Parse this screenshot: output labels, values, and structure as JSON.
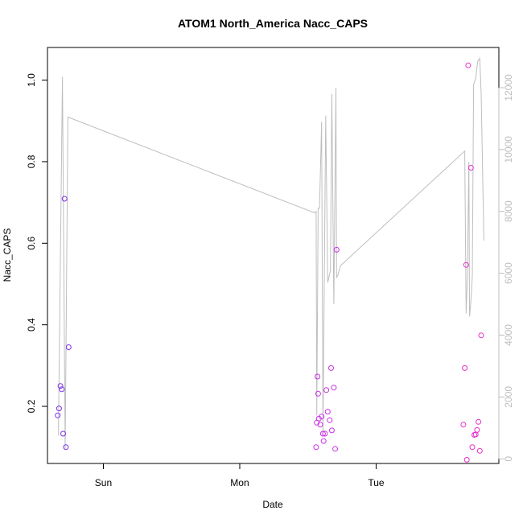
{
  "chart_data": {
    "type": "scatter",
    "title": "ATOM1 North_America Nacc_CAPS",
    "xlabel": "Date",
    "ylabel": "Nacc_CAPS",
    "x_range": [
      -0.41,
      2.9
    ],
    "y_range": [
      0.06,
      1.08
    ],
    "y2_range": [
      -150,
      13300
    ],
    "x_ticks": [
      {
        "value": 0,
        "label": "Sun"
      },
      {
        "value": 1,
        "label": "Mon"
      },
      {
        "value": 2,
        "label": "Tue"
      }
    ],
    "y_ticks": [
      0.2,
      0.4,
      0.6,
      0.8,
      1.0
    ],
    "y2_ticks": [
      0,
      2000,
      4000,
      6000,
      8000,
      10000,
      12000
    ],
    "grid": false,
    "colors": {
      "line": "#bebebe",
      "axis": "#000000",
      "right_axis": "#bebebe",
      "title": "#000000"
    },
    "points": [
      {
        "x": -0.335,
        "y": 0.178,
        "color": "#7b2ee6"
      },
      {
        "x": -0.325,
        "y": 0.195,
        "color": "#7b2ee6"
      },
      {
        "x": -0.315,
        "y": 0.25,
        "color": "#7b2ee6"
      },
      {
        "x": -0.305,
        "y": 0.242,
        "color": "#7b2ee6"
      },
      {
        "x": -0.295,
        "y": 0.133,
        "color": "#7b2ee6"
      },
      {
        "x": -0.285,
        "y": 0.709,
        "color": "#7b2ee6"
      },
      {
        "x": -0.275,
        "y": 0.1,
        "color": "#7b2ee6"
      },
      {
        "x": -0.255,
        "y": 0.345,
        "color": "#7b2ee6"
      },
      {
        "x": 1.56,
        "y": 0.1,
        "color": "#c92ee6"
      },
      {
        "x": 1.565,
        "y": 0.16,
        "color": "#c92ee6"
      },
      {
        "x": 1.57,
        "y": 0.273,
        "color": "#c92ee6"
      },
      {
        "x": 1.575,
        "y": 0.231,
        "color": "#c92ee6"
      },
      {
        "x": 1.58,
        "y": 0.17,
        "color": "#c92ee6"
      },
      {
        "x": 1.59,
        "y": 0.155,
        "color": "#c92ee6"
      },
      {
        "x": 1.6,
        "y": 0.175,
        "color": "#c92ee6"
      },
      {
        "x": 1.61,
        "y": 0.133,
        "color": "#c92ee6"
      },
      {
        "x": 1.615,
        "y": 0.115,
        "color": "#c92ee6"
      },
      {
        "x": 1.625,
        "y": 0.133,
        "color": "#c92ee6"
      },
      {
        "x": 1.635,
        "y": 0.24,
        "color": "#c92ee6"
      },
      {
        "x": 1.645,
        "y": 0.187,
        "color": "#c92ee6"
      },
      {
        "x": 1.66,
        "y": 0.166,
        "color": "#c92ee6"
      },
      {
        "x": 1.67,
        "y": 0.294,
        "color": "#c92ee6"
      },
      {
        "x": 1.675,
        "y": 0.141,
        "color": "#c92ee6"
      },
      {
        "x": 1.69,
        "y": 0.246,
        "color": "#c92ee6"
      },
      {
        "x": 1.7,
        "y": 0.096,
        "color": "#c92ee6"
      },
      {
        "x": 1.71,
        "y": 0.584,
        "color": "#c92ee6"
      },
      {
        "x": 2.64,
        "y": 0.155,
        "color": "#e62ec9"
      },
      {
        "x": 2.65,
        "y": 0.294,
        "color": "#e62ec9"
      },
      {
        "x": 2.66,
        "y": 0.547,
        "color": "#e62ec9"
      },
      {
        "x": 2.665,
        "y": 0.069,
        "color": "#e62ec9"
      },
      {
        "x": 2.675,
        "y": 1.036,
        "color": "#e62ec9"
      },
      {
        "x": 2.695,
        "y": 0.785,
        "color": "#e62ec9"
      },
      {
        "x": 2.705,
        "y": 0.1,
        "color": "#e62ec9"
      },
      {
        "x": 2.72,
        "y": 0.13,
        "color": "#e62ec9"
      },
      {
        "x": 2.73,
        "y": 0.131,
        "color": "#e62ec9"
      },
      {
        "x": 2.74,
        "y": 0.142,
        "color": "#e62ec9"
      },
      {
        "x": 2.75,
        "y": 0.162,
        "color": "#e62ec9"
      },
      {
        "x": 2.76,
        "y": 0.091,
        "color": "#e62ec9"
      },
      {
        "x": 2.77,
        "y": 0.374,
        "color": "#e62ec9"
      }
    ],
    "line": [
      [
        -0.33,
        750
      ],
      [
        -0.3,
        12350
      ],
      [
        -0.28,
        300
      ],
      [
        -0.26,
        11050
      ],
      [
        1.55,
        7950
      ],
      [
        1.56,
        8000
      ],
      [
        1.565,
        1400
      ],
      [
        1.575,
        8100
      ],
      [
        1.585,
        8100
      ],
      [
        1.6,
        10900
      ],
      [
        1.61,
        800
      ],
      [
        1.63,
        11100
      ],
      [
        1.645,
        5700
      ],
      [
        1.665,
        6100
      ],
      [
        1.675,
        11800
      ],
      [
        1.69,
        5000
      ],
      [
        1.705,
        12000
      ],
      [
        1.71,
        5850
      ],
      [
        1.72,
        5950
      ],
      [
        1.74,
        6250
      ],
      [
        2.65,
        9950
      ],
      [
        2.66,
        4700
      ],
      [
        2.67,
        6000
      ],
      [
        2.68,
        9600
      ],
      [
        2.685,
        4600
      ],
      [
        2.695,
        5100
      ],
      [
        2.705,
        5900
      ],
      [
        2.715,
        12100
      ],
      [
        2.73,
        12300
      ],
      [
        2.745,
        12850
      ],
      [
        2.76,
        12950
      ],
      [
        2.77,
        11800
      ],
      [
        2.79,
        7050
      ]
    ]
  }
}
